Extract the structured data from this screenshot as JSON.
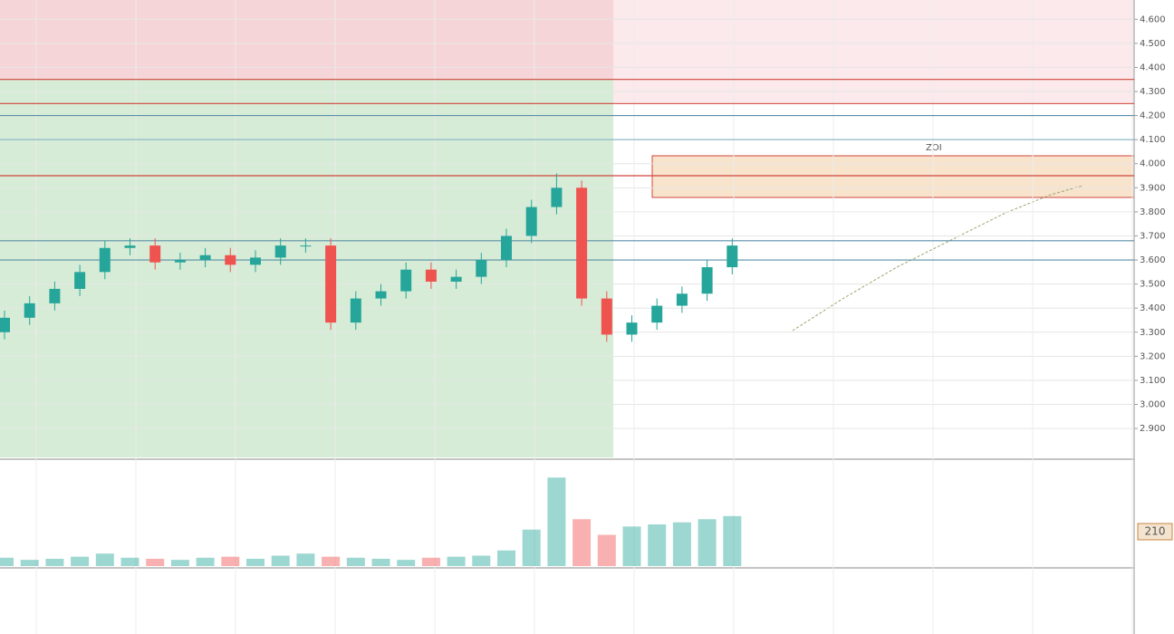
{
  "chart_data": {
    "type": "candlestick",
    "open": [
      3.3,
      3.36,
      3.42,
      3.48,
      3.55,
      3.65,
      3.66,
      3.59,
      3.6,
      3.62,
      3.58,
      3.61,
      3.66,
      3.66,
      3.34,
      3.44,
      3.47,
      3.56,
      3.51,
      3.53,
      3.6,
      3.7,
      3.82,
      3.9,
      3.44,
      3.29,
      3.34,
      3.41,
      3.46,
      3.57
    ],
    "high": [
      3.39,
      3.45,
      3.51,
      3.58,
      3.68,
      3.69,
      3.69,
      3.63,
      3.65,
      3.65,
      3.64,
      3.69,
      3.69,
      3.69,
      3.47,
      3.5,
      3.59,
      3.59,
      3.56,
      3.63,
      3.73,
      3.85,
      3.96,
      3.93,
      3.47,
      3.37,
      3.44,
      3.49,
      3.6,
      3.69
    ],
    "low": [
      3.27,
      3.33,
      3.39,
      3.45,
      3.52,
      3.62,
      3.56,
      3.56,
      3.57,
      3.55,
      3.55,
      3.58,
      3.63,
      3.31,
      3.31,
      3.41,
      3.44,
      3.48,
      3.48,
      3.5,
      3.57,
      3.67,
      3.79,
      3.41,
      3.26,
      3.26,
      3.31,
      3.38,
      3.43,
      3.54
    ],
    "close": [
      3.36,
      3.42,
      3.48,
      3.55,
      3.65,
      3.66,
      3.59,
      3.6,
      3.62,
      3.58,
      3.61,
      3.66,
      3.66,
      3.34,
      3.44,
      3.47,
      3.56,
      3.51,
      3.53,
      3.6,
      3.7,
      3.82,
      3.9,
      3.44,
      3.29,
      3.34,
      3.41,
      3.46,
      3.57,
      3.66
    ],
    "volume": [
      8,
      6,
      7,
      9,
      12,
      8,
      7,
      6,
      8,
      9,
      7,
      10,
      12,
      9,
      8,
      7,
      6,
      8,
      9,
      10,
      15,
      35,
      85,
      45,
      30,
      38,
      40,
      42,
      45,
      48
    ],
    "up_color": "#26a69a",
    "down_color": "#ef5350",
    "ylim": [
      2.78,
      4.68
    ],
    "yticks": [
      {
        "value": 4.6,
        "label": "4.600"
      },
      {
        "value": 4.5,
        "label": "4.500"
      },
      {
        "value": 4.4,
        "label": "4.400"
      },
      {
        "value": 4.3,
        "label": "4.300"
      },
      {
        "value": 4.2,
        "label": "4.200"
      },
      {
        "value": 4.1,
        "label": "4.100"
      },
      {
        "value": 4.0,
        "label": "4.000"
      },
      {
        "value": 3.9,
        "label": "3.900"
      },
      {
        "value": 3.8,
        "label": "3.800"
      },
      {
        "value": 3.7,
        "label": "3.700"
      },
      {
        "value": 3.6,
        "label": "3.600"
      },
      {
        "value": 3.5,
        "label": "3.500"
      },
      {
        "value": 3.4,
        "label": "3.400"
      },
      {
        "value": 3.3,
        "label": "3.300"
      },
      {
        "value": 3.2,
        "label": "3.200"
      },
      {
        "value": 3.1,
        "label": "3.100"
      },
      {
        "value": 3.0,
        "label": "3.000"
      },
      {
        "value": 2.9,
        "label": "2.900"
      }
    ],
    "volume_ylim": [
      0,
      100
    ],
    "levels": [
      {
        "value": 4.35,
        "color": "#d0443c"
      },
      {
        "value": 4.25,
        "color": "#d0443c"
      },
      {
        "value": 3.95,
        "color": "#d0443c"
      },
      {
        "value": 4.2,
        "color": "#5a8fa8"
      },
      {
        "value": 4.1,
        "color": "#8fb8c8"
      },
      {
        "value": 3.68,
        "color": "#5a8fa8"
      },
      {
        "value": 3.6,
        "color": "#5a8fa8"
      }
    ],
    "grid": true,
    "annotation": "ZOI",
    "pane_label": "210"
  }
}
